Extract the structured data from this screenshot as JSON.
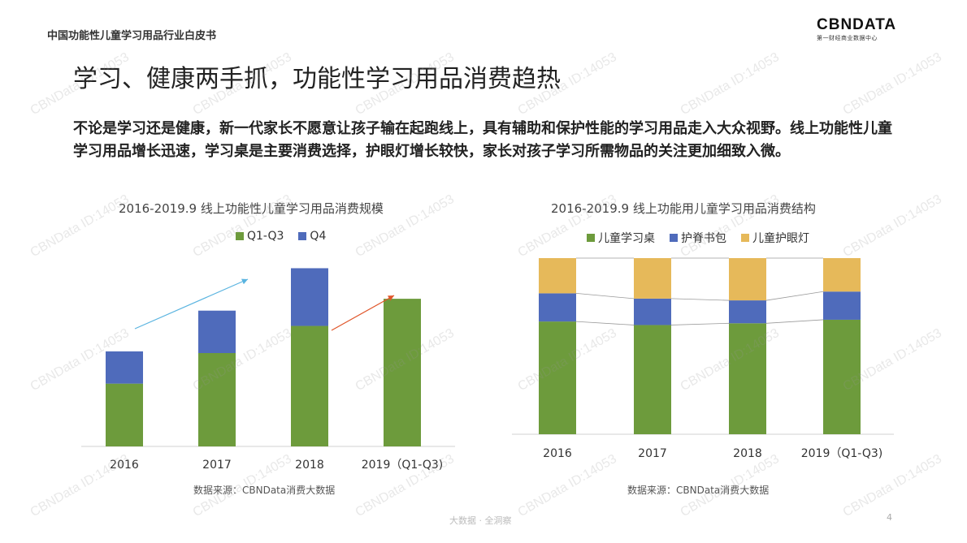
{
  "header": {
    "doc_title": "中国功能性儿童学习用品行业白皮书"
  },
  "logo": {
    "main": "CBNDATA",
    "sub": "第一财经商业数据中心"
  },
  "headline": "学习、健康两手抓，功能性学习用品消费趋热",
  "paragraph": "不论是学习还是健康，新一代家长不愿意让孩子输在起跑线上，具有辅助和保护性能的学习用品走入大众视野。线上功能性儿童学习用品增长迅速，学习桌是主要消费选择，护眼灯增长较快，家长对孩子学习所需物品的关注更加细致入微。",
  "watermark_text": "CBNData ID:14053",
  "footer": {
    "text": "大数据 · 全洞察",
    "page": "4"
  },
  "colors": {
    "green": "#6d9b3c",
    "blue": "#4f6bbb",
    "yellow": "#e6b95a",
    "arrow_blue": "#5ab4e0",
    "arrow_red": "#e0562a"
  },
  "chart_data": [
    {
      "type": "bar",
      "stacked": true,
      "title": "2016-2019.9 线上功能性儿童学习用品消费规模",
      "categories": [
        "2016",
        "2017",
        "2018",
        "2019（Q1-Q3)"
      ],
      "series": [
        {
          "name": "Q1-Q3",
          "values": [
            37,
            55,
            71,
            87
          ]
        },
        {
          "name": "Q4",
          "values": [
            19,
            25,
            34,
            0
          ]
        }
      ],
      "ylim": [
        0,
        110
      ],
      "legend": "top",
      "source": "数据来源：CBNData消费大数据"
    },
    {
      "type": "bar",
      "stacked": true,
      "percent": true,
      "title": "2016-2019.9 线上功能用儿童学习用品消费结构",
      "categories": [
        "2016",
        "2017",
        "2018",
        "2019（Q1-Q3)"
      ],
      "series": [
        {
          "name": "儿童学习桌",
          "values": [
            64,
            62,
            63,
            65
          ]
        },
        {
          "name": "护脊书包",
          "values": [
            16,
            15,
            13,
            16
          ]
        },
        {
          "name": "儿童护眼灯",
          "values": [
            20,
            23,
            24,
            19
          ]
        }
      ],
      "ylim": [
        0,
        100
      ],
      "legend": "top",
      "source": "数据来源：CBNData消费大数据"
    }
  ]
}
